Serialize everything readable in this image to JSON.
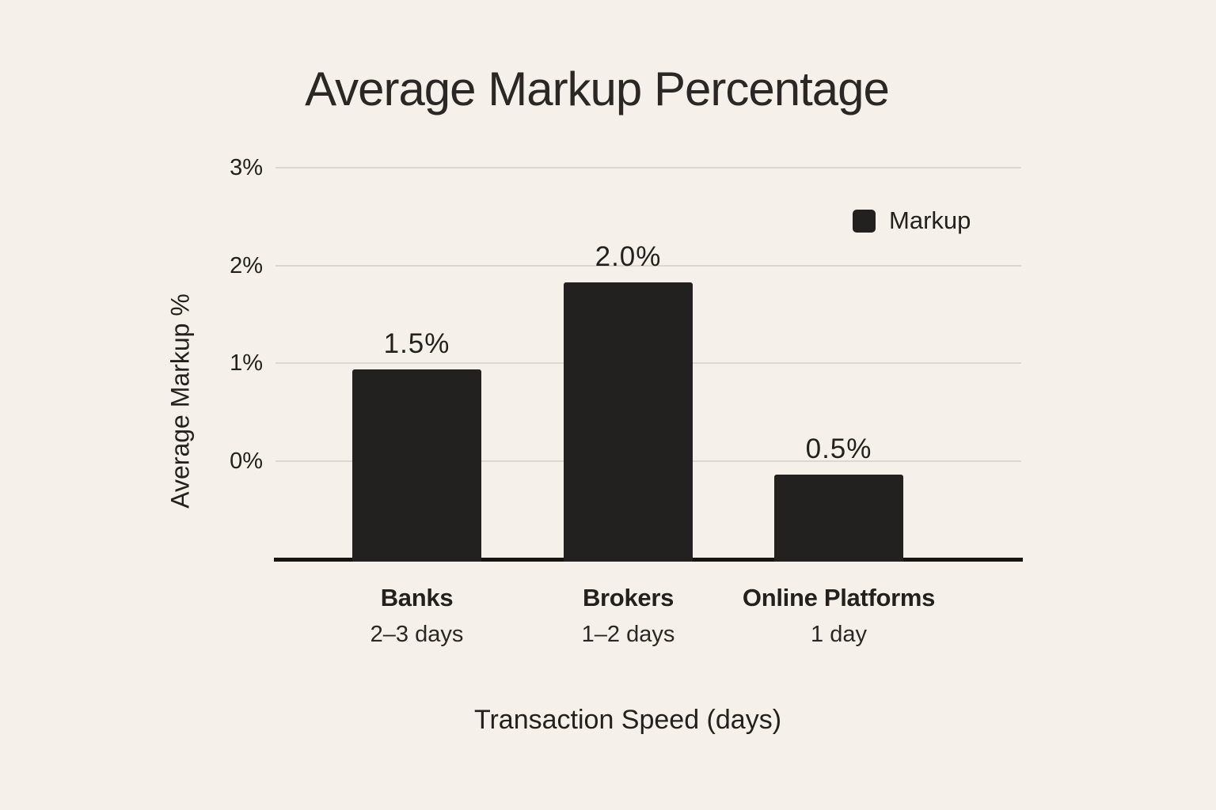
{
  "page": {
    "background_color": "#f5f1ea",
    "ink_color": "#232120",
    "gridline_color": "#dcd8d1"
  },
  "chart_data": {
    "type": "bar",
    "title": "Average Markup Percentage",
    "ylabel": "Average Markup %",
    "xlabel": "Transaction Speed (days)",
    "legend": {
      "label": "Markup",
      "position": "top-right",
      "swatch_color": "#232120"
    },
    "yticks": [
      "3%",
      "2%",
      "1%",
      "0%"
    ],
    "ytick_values": [
      3,
      2,
      1,
      0
    ],
    "grid": true,
    "bar_color": "#232120",
    "categories": [
      {
        "name": "Banks",
        "speed": "2–3 days"
      },
      {
        "name": "Brokers",
        "speed": "1–2 days"
      },
      {
        "name": "Online Platforms",
        "speed": "1 day"
      }
    ],
    "series": [
      {
        "name": "Markup",
        "values": [
          1.5,
          2.0,
          0.5
        ],
        "labels": [
          "1.5%",
          "2.0%",
          "0.5%"
        ]
      }
    ],
    "layout": {
      "legend_position": "top-right",
      "bar_top_axis_values": [
        0.94,
        1.83,
        -0.14
      ],
      "baseline_below_zero": true
    }
  }
}
